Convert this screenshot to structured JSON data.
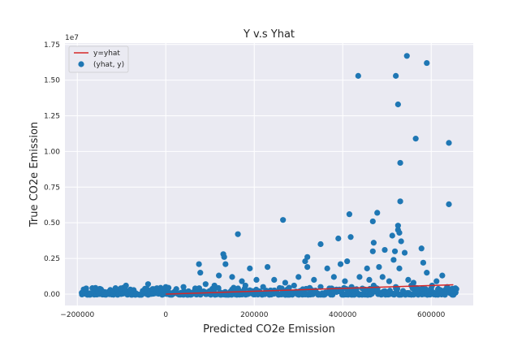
{
  "chart_data": {
    "type": "scatter",
    "title": "Y v.s Yhat",
    "xlabel": "Predicted CO2e Emission",
    "ylabel": "True CO2e Emission",
    "y_multiplier_label": "1e7",
    "xlim": [
      -228000,
      695000
    ],
    "ylim": [
      -0.08,
      1.76
    ],
    "x_ticks": [
      -200000,
      0,
      200000,
      400000,
      600000
    ],
    "x_tick_labels": [
      "−200000",
      "0",
      "200000",
      "400000",
      "600000"
    ],
    "y_ticks": [
      0.0,
      0.25,
      0.5,
      0.75,
      1.0,
      1.25,
      1.5,
      1.75
    ],
    "y_tick_labels": [
      "0.00",
      "0.25",
      "0.50",
      "0.75",
      "1.00",
      "1.25",
      "1.50",
      "1.75"
    ],
    "grid": true,
    "legend_position": "top-left",
    "colors": {
      "line": "#d62728",
      "points": "#1f77b4",
      "background": "#eaeaf2",
      "grid": "#ffffff"
    },
    "series": [
      {
        "name": "y=yhat",
        "kind": "line",
        "x": [
          0,
          650000
        ],
        "y": [
          0.0,
          0.065
        ]
      },
      {
        "name": "(yhat, y)",
        "kind": "scatter",
        "points": [
          [
            435000,
            1.53
          ],
          [
            545000,
            1.67
          ],
          [
            590000,
            1.62
          ],
          [
            520000,
            1.53
          ],
          [
            525000,
            1.33
          ],
          [
            565000,
            1.09
          ],
          [
            640000,
            1.06
          ],
          [
            530000,
            0.92
          ],
          [
            530000,
            0.65
          ],
          [
            640000,
            0.63
          ],
          [
            265000,
            0.52
          ],
          [
            415000,
            0.56
          ],
          [
            478000,
            0.57
          ],
          [
            468000,
            0.51
          ],
          [
            525000,
            0.48
          ],
          [
            528000,
            0.43
          ],
          [
            525000,
            0.45
          ],
          [
            512000,
            0.41
          ],
          [
            418000,
            0.4
          ],
          [
            163000,
            0.42
          ],
          [
            390000,
            0.39
          ],
          [
            470000,
            0.36
          ],
          [
            532000,
            0.37
          ],
          [
            578000,
            0.32
          ],
          [
            350000,
            0.35
          ],
          [
            468000,
            0.3
          ],
          [
            495000,
            0.31
          ],
          [
            518000,
            0.3
          ],
          [
            540000,
            0.29
          ],
          [
            320000,
            0.26
          ],
          [
            75000,
            0.21
          ],
          [
            130000,
            0.28
          ],
          [
            132000,
            0.26
          ],
          [
            135000,
            0.21
          ],
          [
            230000,
            0.19
          ],
          [
            190000,
            0.18
          ],
          [
            320000,
            0.19
          ],
          [
            315000,
            0.23
          ],
          [
            395000,
            0.21
          ],
          [
            365000,
            0.18
          ],
          [
            410000,
            0.23
          ],
          [
            455000,
            0.18
          ],
          [
            482000,
            0.19
          ],
          [
            515000,
            0.24
          ],
          [
            528000,
            0.18
          ],
          [
            582000,
            0.22
          ],
          [
            590000,
            0.15
          ],
          [
            625000,
            0.13
          ],
          [
            78000,
            0.15
          ],
          [
            120000,
            0.13
          ],
          [
            150000,
            0.12
          ],
          [
            172000,
            0.09
          ],
          [
            205000,
            0.1
          ],
          [
            245000,
            0.1
          ],
          [
            270000,
            0.08
          ],
          [
            300000,
            0.12
          ],
          [
            335000,
            0.1
          ],
          [
            380000,
            0.12
          ],
          [
            405000,
            0.09
          ],
          [
            438000,
            0.12
          ],
          [
            460000,
            0.1
          ],
          [
            490000,
            0.12
          ],
          [
            505000,
            0.09
          ],
          [
            548000,
            0.1
          ],
          [
            560000,
            0.08
          ],
          [
            612000,
            0.09
          ],
          [
            636000,
            0.05
          ],
          [
            655000,
            0.01
          ],
          [
            645000,
            0.02
          ],
          [
            602000,
            0.06
          ],
          [
            -180000,
            0.04
          ],
          [
            -90000,
            0.06
          ],
          [
            -40000,
            0.07
          ],
          [
            0,
            0.05
          ],
          [
            40000,
            0.05
          ],
          [
            90000,
            0.07
          ],
          [
            110000,
            0.06
          ],
          [
            180000,
            0.06
          ],
          [
            220000,
            0.05
          ],
          [
            260000,
            0.04
          ],
          [
            290000,
            0.06
          ],
          [
            350000,
            0.05
          ],
          [
            375000,
            0.04
          ],
          [
            420000,
            0.05
          ],
          [
            470000,
            0.06
          ],
          [
            520000,
            0.05
          ],
          [
            555000,
            0.06
          ],
          [
            580000,
            0.04
          ]
        ],
        "dense_band": {
          "x_start": -190000,
          "x_end": 660000,
          "y_low": -0.005,
          "y_high": 0.045
        }
      }
    ]
  }
}
